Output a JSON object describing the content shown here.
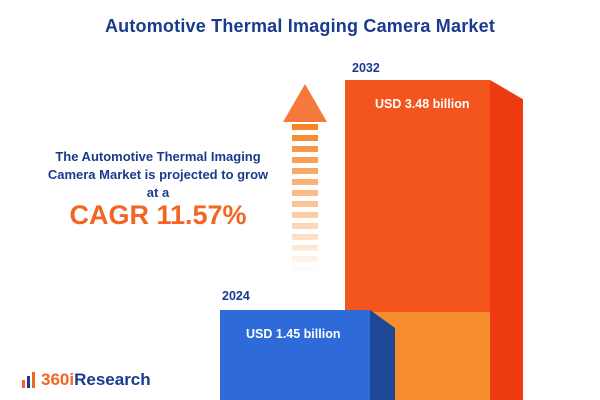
{
  "title": "Automotive Thermal Imaging Camera Market",
  "description": {
    "line1": "The Automotive Thermal Imaging",
    "line2": "Camera Market is projected to grow",
    "line3": "at a",
    "cagr": "CAGR 11.57%"
  },
  "chart_data": {
    "type": "bar",
    "title": "Automotive Thermal Imaging Camera Market",
    "categories": [
      "2024",
      "2032"
    ],
    "values": [
      1.45,
      3.48
    ],
    "unit": "USD billion",
    "value_labels": [
      "USD 1.45 billion",
      "USD 3.48 billion"
    ],
    "ylim": [
      0,
      3.48
    ],
    "grid": false,
    "legend": false,
    "annotations": [
      "CAGR 11.57%"
    ]
  },
  "logo": {
    "brand_orange": "360i",
    "brand_navy": "Research"
  },
  "colors": {
    "navy": "#1A3B8D",
    "accent_orange": "#F26522",
    "bar_blue": "#2E6BD9",
    "bar_blue_side": "#1E4796",
    "bar_orange": "#F4541D",
    "bar_orange_side": "#EE3A10",
    "bar_orange_light": "#F78E2D",
    "arrow_orange": "#F58220"
  }
}
